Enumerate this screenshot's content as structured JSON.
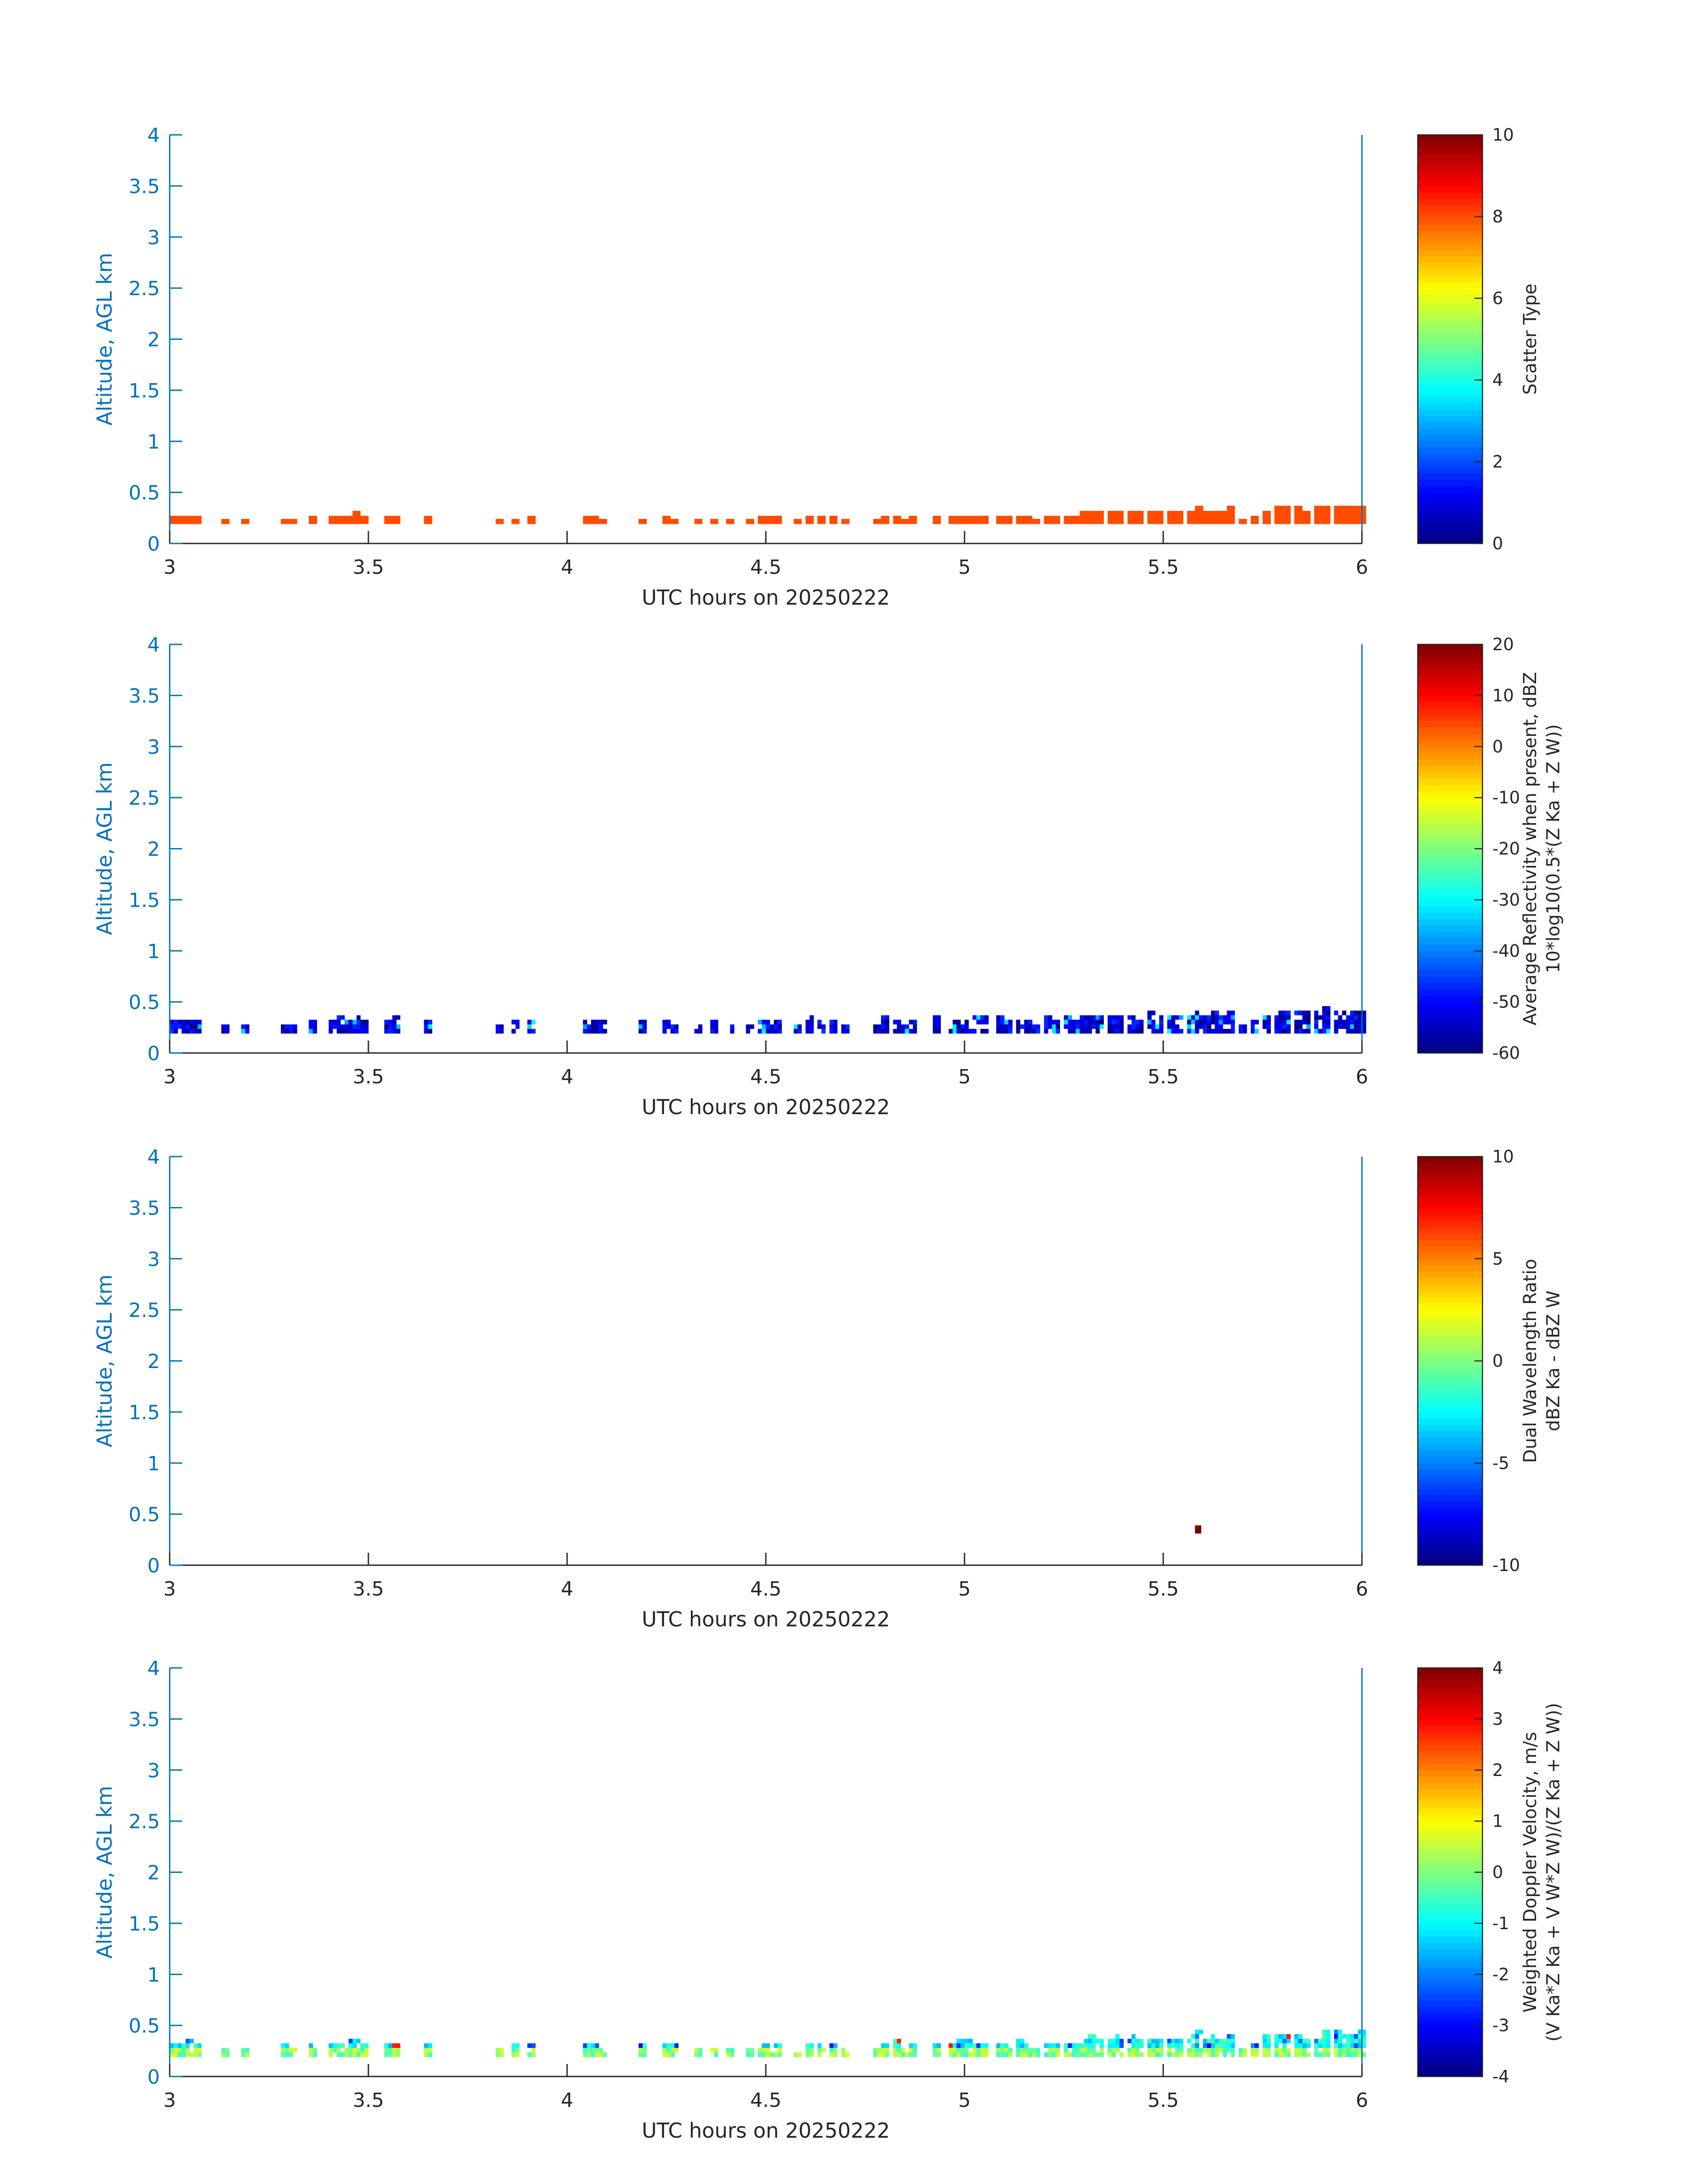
{
  "chart_data": [
    {
      "type": "heatmap",
      "xlabel": "UTC hours on 20250222",
      "ylabel": "Altitude, AGL km",
      "xlim": [
        3,
        6
      ],
      "ylim": [
        0,
        4
      ],
      "xticks": [
        3,
        3.5,
        4,
        4.5,
        5,
        5.5,
        6
      ],
      "xtick_labels": [
        "3",
        "3.5",
        "4",
        "4.5",
        "5",
        "5.5",
        "6"
      ],
      "yticks": [
        0,
        0.5,
        1,
        1.5,
        2,
        2.5,
        3,
        3.5,
        4
      ],
      "ytick_labels": [
        "0",
        "0.5",
        "1",
        "1.5",
        "2",
        "2.5",
        "3",
        "3.5",
        "4"
      ],
      "colorbar": {
        "label_lines": [
          "Scatter Type"
        ],
        "range": [
          0,
          10
        ],
        "ticks": [
          0,
          2,
          4,
          6,
          8,
          10
        ],
        "tick_labels": [
          "0",
          "2",
          "4",
          "6",
          "8",
          "10"
        ],
        "colormap": "jet"
      },
      "pattern": "scatter",
      "constant_value": 8,
      "bins": [
        [
          3.0,
          0.25
        ],
        [
          3.02,
          0.25
        ],
        [
          3.04,
          0.25
        ],
        [
          3.06,
          0.25
        ],
        [
          3.13,
          0.22
        ],
        [
          3.18,
          0.22
        ],
        [
          3.28,
          0.22
        ],
        [
          3.3,
          0.22
        ],
        [
          3.35,
          0.25
        ],
        [
          3.4,
          0.25
        ],
        [
          3.42,
          0.25
        ],
        [
          3.44,
          0.25
        ],
        [
          3.46,
          0.3
        ],
        [
          3.48,
          0.25
        ],
        [
          3.54,
          0.25
        ],
        [
          3.56,
          0.25
        ],
        [
          3.64,
          0.25
        ],
        [
          3.82,
          0.22
        ],
        [
          3.86,
          0.22
        ],
        [
          3.9,
          0.25
        ],
        [
          4.04,
          0.25
        ],
        [
          4.06,
          0.25
        ],
        [
          4.08,
          0.22
        ],
        [
          4.18,
          0.22
        ],
        [
          4.24,
          0.25
        ],
        [
          4.26,
          0.22
        ],
        [
          4.32,
          0.22
        ],
        [
          4.36,
          0.22
        ],
        [
          4.4,
          0.22
        ],
        [
          4.45,
          0.22
        ],
        [
          4.48,
          0.25
        ],
        [
          4.5,
          0.25
        ],
        [
          4.52,
          0.25
        ],
        [
          4.57,
          0.22
        ],
        [
          4.6,
          0.25
        ],
        [
          4.63,
          0.25
        ],
        [
          4.66,
          0.25
        ],
        [
          4.69,
          0.22
        ],
        [
          4.77,
          0.22
        ],
        [
          4.79,
          0.25
        ],
        [
          4.82,
          0.25
        ],
        [
          4.84,
          0.22
        ],
        [
          4.86,
          0.25
        ],
        [
          4.92,
          0.25
        ],
        [
          4.96,
          0.25
        ],
        [
          4.98,
          0.25
        ],
        [
          5.0,
          0.25
        ],
        [
          5.02,
          0.25
        ],
        [
          5.04,
          0.25
        ],
        [
          5.08,
          0.25
        ],
        [
          5.1,
          0.25
        ],
        [
          5.13,
          0.25
        ],
        [
          5.15,
          0.25
        ],
        [
          5.17,
          0.22
        ],
        [
          5.2,
          0.25
        ],
        [
          5.22,
          0.25
        ],
        [
          5.25,
          0.25
        ],
        [
          5.27,
          0.25
        ],
        [
          5.29,
          0.3
        ],
        [
          5.31,
          0.3
        ],
        [
          5.33,
          0.3
        ],
        [
          5.36,
          0.3
        ],
        [
          5.38,
          0.3
        ],
        [
          5.41,
          0.3
        ],
        [
          5.43,
          0.3
        ],
        [
          5.46,
          0.3
        ],
        [
          5.48,
          0.3
        ],
        [
          5.51,
          0.3
        ],
        [
          5.53,
          0.3
        ],
        [
          5.56,
          0.3
        ],
        [
          5.58,
          0.35
        ],
        [
          5.6,
          0.3
        ],
        [
          5.62,
          0.3
        ],
        [
          5.64,
          0.3
        ],
        [
          5.66,
          0.35
        ],
        [
          5.69,
          0.22
        ],
        [
          5.72,
          0.25
        ],
        [
          5.75,
          0.3
        ],
        [
          5.78,
          0.35
        ],
        [
          5.8,
          0.35
        ],
        [
          5.83,
          0.35
        ],
        [
          5.85,
          0.3
        ],
        [
          5.88,
          0.35
        ],
        [
          5.9,
          0.35
        ],
        [
          5.93,
          0.35
        ],
        [
          5.95,
          0.35
        ],
        [
          5.97,
          0.35
        ],
        [
          5.99,
          0.35
        ]
      ]
    },
    {
      "type": "heatmap",
      "xlabel": "UTC hours on 20250222",
      "ylabel": "Altitude, AGL km",
      "xlim": [
        3,
        6
      ],
      "ylim": [
        0,
        4
      ],
      "xticks": [
        3,
        3.5,
        4,
        4.5,
        5,
        5.5,
        6
      ],
      "xtick_labels": [
        "3",
        "3.5",
        "4",
        "4.5",
        "5",
        "5.5",
        "6"
      ],
      "yticks": [
        0,
        0.5,
        1,
        1.5,
        2,
        2.5,
        3,
        3.5,
        4
      ],
      "ytick_labels": [
        "0",
        "0.5",
        "1",
        "1.5",
        "2",
        "2.5",
        "3",
        "3.5",
        "4"
      ],
      "colorbar": {
        "label_lines": [
          "Average Reflectivity when present, dBZ",
          "10*log10(0.5*(Z Ka + Z W))"
        ],
        "range": [
          -60,
          20
        ],
        "ticks": [
          -60,
          -50,
          -40,
          -30,
          -20,
          -10,
          0,
          10,
          20
        ],
        "tick_labels": [
          "-60",
          "-50",
          "-40",
          "-30",
          "-20",
          "-10",
          "0",
          "10",
          "20"
        ],
        "colormap": "jet"
      },
      "pattern": "reflectivity",
      "value_range_typical": [
        -60,
        -35
      ]
    },
    {
      "type": "heatmap",
      "xlabel": "UTC hours on 20250222",
      "ylabel": "Altitude, AGL km",
      "xlim": [
        3,
        6
      ],
      "ylim": [
        0,
        4
      ],
      "xticks": [
        3,
        3.5,
        4,
        4.5,
        5,
        5.5,
        6
      ],
      "xtick_labels": [
        "3",
        "3.5",
        "4",
        "4.5",
        "5",
        "5.5",
        "6"
      ],
      "yticks": [
        0,
        0.5,
        1,
        1.5,
        2,
        2.5,
        3,
        3.5,
        4
      ],
      "ytick_labels": [
        "0",
        "0.5",
        "1",
        "1.5",
        "2",
        "2.5",
        "3",
        "3.5",
        "4"
      ],
      "colorbar": {
        "label_lines": [
          "Dual Wavelength Ratio",
          "dBZ Ka - dBZ W"
        ],
        "range": [
          -10,
          10
        ],
        "ticks": [
          -10,
          -5,
          0,
          5,
          10
        ],
        "tick_labels": [
          "-10",
          "-5",
          "0",
          "5",
          "10"
        ],
        "colormap": "jet"
      },
      "pattern": "single",
      "bins_with_value": [
        [
          5.58,
          0.35,
          10
        ]
      ]
    },
    {
      "type": "heatmap",
      "xlabel": "UTC hours on 20250222",
      "ylabel": "Altitude, AGL km",
      "xlim": [
        3,
        6
      ],
      "ylim": [
        0,
        4
      ],
      "xticks": [
        3,
        3.5,
        4,
        4.5,
        5,
        5.5,
        6
      ],
      "xtick_labels": [
        "3",
        "3.5",
        "4",
        "4.5",
        "5",
        "5.5",
        "6"
      ],
      "yticks": [
        0,
        0.5,
        1,
        1.5,
        2,
        2.5,
        3,
        3.5,
        4
      ],
      "ytick_labels": [
        "0",
        "0.5",
        "1",
        "1.5",
        "2",
        "2.5",
        "3",
        "3.5",
        "4"
      ],
      "colorbar": {
        "label_lines": [
          "Weighted Doppler Velocity, m/s",
          "(V Ka*Z Ka + V W*Z W)/(Z Ka + Z W))"
        ],
        "range": [
          -4,
          4
        ],
        "ticks": [
          -4,
          -3,
          -2,
          -1,
          0,
          1,
          2,
          3,
          4
        ],
        "tick_labels": [
          "-4",
          "-3",
          "-2",
          "-1",
          "0",
          "1",
          "2",
          "3",
          "4"
        ],
        "colormap": "jet"
      },
      "pattern": "velocity",
      "value_range_typical": [
        -1.5,
        0.5
      ]
    }
  ]
}
